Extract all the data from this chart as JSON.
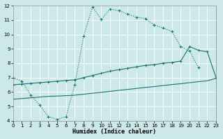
{
  "xlabel": "Humidex (Indice chaleur)",
  "bg_color": "#cce8e8",
  "line_color": "#1a7070",
  "xlim": [
    0,
    23
  ],
  "ylim": [
    4,
    12
  ],
  "xticks": [
    0,
    1,
    2,
    3,
    4,
    5,
    6,
    7,
    8,
    9,
    10,
    11,
    12,
    13,
    14,
    15,
    16,
    17,
    18,
    19,
    20,
    21,
    22,
    23
  ],
  "yticks": [
    4,
    5,
    6,
    7,
    8,
    9,
    10,
    11,
    12
  ],
  "curve1_x": [
    0,
    1,
    2,
    3,
    4,
    5,
    6,
    7,
    8,
    9,
    10,
    11,
    12,
    13,
    14,
    15,
    16,
    17,
    18,
    19,
    20,
    21
  ],
  "curve1_y": [
    7.0,
    6.75,
    5.8,
    5.1,
    4.3,
    4.1,
    4.3,
    6.5,
    9.9,
    11.9,
    11.05,
    11.75,
    11.65,
    11.4,
    11.2,
    11.1,
    10.65,
    10.45,
    10.2,
    9.15,
    8.85,
    7.7
  ],
  "curve2_x": [
    0,
    1,
    2,
    3,
    4,
    5,
    6,
    7,
    8,
    9,
    10,
    11,
    12,
    13,
    14,
    15,
    16,
    17,
    18,
    19,
    20,
    21,
    22,
    23
  ],
  "curve2_y": [
    6.5,
    6.55,
    6.6,
    6.65,
    6.7,
    6.75,
    6.8,
    6.85,
    7.0,
    7.15,
    7.3,
    7.45,
    7.55,
    7.65,
    7.75,
    7.85,
    7.9,
    8.0,
    8.05,
    8.15,
    9.15,
    8.9,
    8.8,
    7.0
  ],
  "curve3_x": [
    0,
    1,
    2,
    3,
    4,
    5,
    6,
    7,
    8,
    9,
    10,
    11,
    12,
    13,
    14,
    15,
    16,
    17,
    18,
    19,
    20,
    21,
    22,
    23
  ],
  "curve3_y": [
    5.5,
    5.55,
    5.6,
    5.65,
    5.7,
    5.72,
    5.75,
    5.78,
    5.85,
    5.92,
    5.98,
    6.05,
    6.12,
    6.18,
    6.25,
    6.32,
    6.38,
    6.45,
    6.52,
    6.58,
    6.65,
    6.72,
    6.78,
    6.95
  ]
}
